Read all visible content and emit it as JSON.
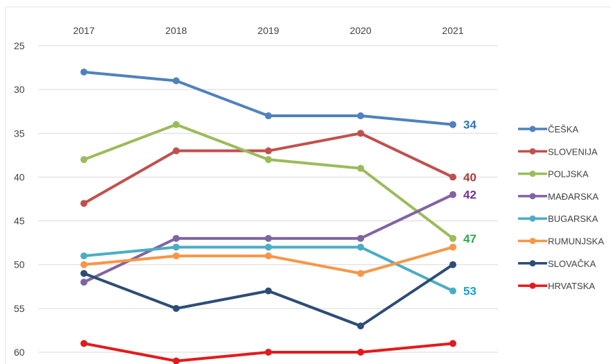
{
  "chart_data": {
    "type": "line",
    "x": [
      "2017",
      "2018",
      "2019",
      "2020",
      "2021"
    ],
    "y_axis": {
      "inverted": true,
      "ylim": [
        25,
        60
      ],
      "ticks": [
        25,
        30,
        35,
        40,
        45,
        50,
        55,
        60
      ]
    },
    "x_axis_position": "top",
    "grid": true,
    "legend_position": "right",
    "series": [
      {
        "name": "ČEŠKA",
        "color": "#4F81BD",
        "values": [
          28,
          29,
          33,
          33,
          34
        ],
        "end_label": "34",
        "end_label_color": "#2E74B5"
      },
      {
        "name": "SLOVENIJA",
        "color": "#C0504D",
        "values": [
          43,
          37,
          37,
          35,
          40
        ],
        "end_label": "40",
        "end_label_color": "#A5403D"
      },
      {
        "name": "POLJSKA",
        "color": "#9BBB59",
        "values": [
          38,
          34,
          38,
          39,
          47
        ],
        "end_label": "47",
        "end_label_color": "#2EA84A"
      },
      {
        "name": "MAĐARSKA",
        "color": "#8064A2",
        "values": [
          52,
          47,
          47,
          47,
          42
        ],
        "end_label": "42",
        "end_label_color": "#7030A0"
      },
      {
        "name": "BUGARSKA",
        "color": "#4BACC6",
        "values": [
          49,
          48,
          48,
          48,
          53
        ],
        "end_label": "53",
        "end_label_color": "#17A2C8"
      },
      {
        "name": "RUMUNJSKA",
        "color": "#F79646",
        "values": [
          50,
          49,
          49,
          51,
          48
        ],
        "end_label": "",
        "end_label_color": ""
      },
      {
        "name": "SLOVAČKA",
        "color": "#2C4D75",
        "values": [
          51,
          55,
          53,
          57,
          50
        ],
        "end_label": "",
        "end_label_color": ""
      },
      {
        "name": "HRVATSKA",
        "color": "#E31A1C",
        "values": [
          59,
          61,
          60,
          60,
          59
        ],
        "end_label": "",
        "end_label_color": ""
      }
    ]
  }
}
